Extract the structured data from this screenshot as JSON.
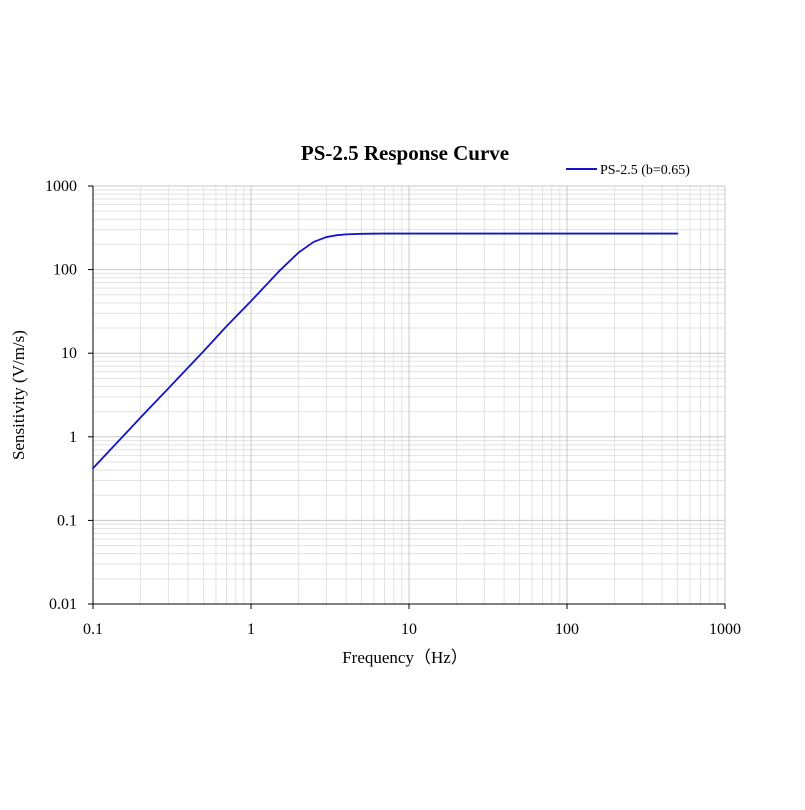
{
  "chart_data": {
    "type": "line",
    "title": "PS-2.5 Response Curve",
    "xlabel": "Frequency（Hz）",
    "ylabel": "Sensitivity (V/m/s)",
    "x_scale": "log",
    "y_scale": "log",
    "xlim": [
      0.1,
      1000
    ],
    "ylim": [
      0.01,
      1000
    ],
    "x_ticks": [
      "0.1",
      "1",
      "10",
      "100",
      "1000"
    ],
    "y_ticks": [
      "0.01",
      "0.1",
      "1",
      "10",
      "100",
      "1000"
    ],
    "grid": true,
    "legend_position": "top-right",
    "series": [
      {
        "name": "PS-2.5 (b=0.65)",
        "color": "#1414c8",
        "x": [
          0.1,
          0.2,
          0.3,
          0.5,
          0.7,
          1,
          1.5,
          2,
          2.5,
          3,
          3.5,
          4,
          5,
          7,
          10,
          20,
          30,
          50,
          100,
          200,
          300,
          500
        ],
        "y": [
          0.42,
          1.7,
          3.8,
          10.5,
          21,
          42,
          95,
          160,
          215,
          245,
          258,
          264,
          268,
          270,
          270,
          270,
          270,
          270,
          270,
          270,
          270,
          270
        ]
      }
    ]
  }
}
